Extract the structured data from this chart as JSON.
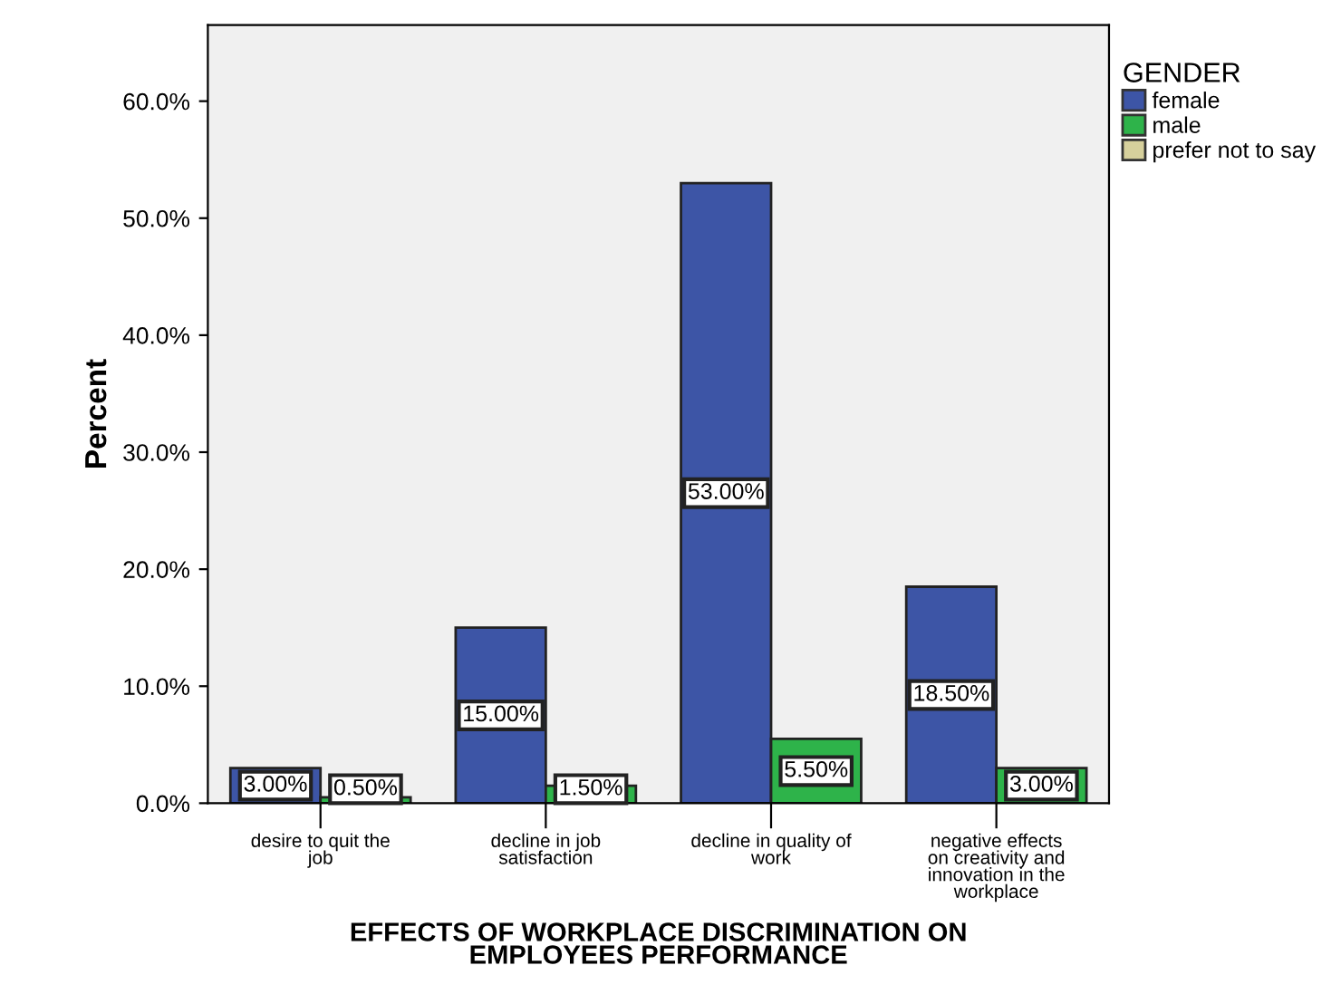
{
  "chart_data": {
    "type": "bar",
    "categories": [
      "desire to quit the\njob",
      "decline in job\nsatisfaction",
      "decline in quality of\nwork",
      "negative effects\non creativity and\ninnovation in the\nworkplace"
    ],
    "series": [
      {
        "name": "female",
        "color": "#3d55a6",
        "values": [
          3.0,
          15.0,
          53.0,
          18.5
        ],
        "value_labels": [
          "3.00%",
          "15.00%",
          "53.00%",
          "18.50%"
        ]
      },
      {
        "name": "male",
        "color": "#2eb34a",
        "values": [
          0.5,
          1.5,
          5.5,
          3.0
        ],
        "value_labels": [
          "0.50%",
          "1.50%",
          "5.50%",
          "3.00%"
        ]
      },
      {
        "name": "prefer not to say",
        "color": "#d6d09c",
        "values": [
          null,
          null,
          null,
          null
        ]
      }
    ],
    "xlabel": "EFFECTS OF WORKPLACE DISCRIMINATION ON\nEMPLOYEES PERFORMANCE",
    "ylabel": "Percent",
    "legend_title": "GENDER",
    "legend": "top right",
    "ylim": [
      0,
      66.5
    ],
    "yticks": [
      {
        "value": 0,
        "label": "0.0%"
      },
      {
        "value": 10,
        "label": "10.0%"
      },
      {
        "value": 20,
        "label": "20.0%"
      },
      {
        "value": 30,
        "label": "30.0%"
      },
      {
        "value": 40,
        "label": "40.0%"
      },
      {
        "value": 50,
        "label": "50.0%"
      },
      {
        "value": 60,
        "label": "60.0%"
      }
    ],
    "grid": false
  }
}
